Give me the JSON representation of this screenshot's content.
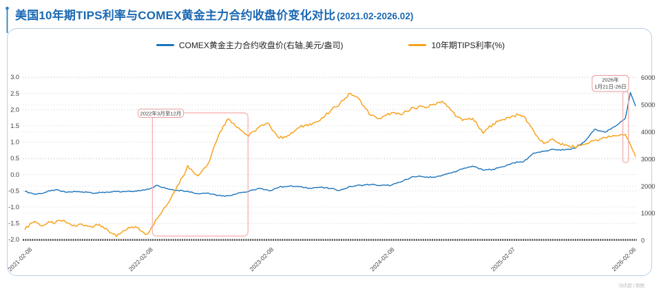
{
  "title": {
    "main": "美国10年期TIPS利率与COMEX黄金主力合约收盘价变化对比",
    "period": "(2021.02-2026.02)"
  },
  "legend": [
    {
      "label": "COMEX黄金主力合约收盘价(右轴,美元/盎司)",
      "color": "#1b74bc"
    },
    {
      "label": "10年期TIPS利率(%)",
      "color": "#f7a21b"
    }
  ],
  "watermark": "冯庆超 | 制图",
  "colors": {
    "title": "#1a68b2",
    "card_border": "#b5d0e8",
    "grid": "#dcdcdc",
    "grid_right": "#e2e2e2",
    "axis_line": "#4d4d4d",
    "tick_text": "#3d3d3d",
    "annotation_box": "#e89b9b",
    "annotation_window": "#f2abab",
    "annotation_text": "#3a3a3a",
    "pin": "#2e7fc0"
  },
  "chart_data": {
    "type": "line",
    "title": "美国10年期TIPS利率与COMEX黄金主力合约收盘价变化对比(2021.02-2026.02)",
    "x_start": "2021-02-08",
    "x_end": "2026-02-06",
    "x_months": 60,
    "x_ticks": [
      "2021-02-08",
      "2022-02-08",
      "2023-02-08",
      "2024-02-08",
      "2025-02-07",
      "2026-02-06"
    ],
    "left_axis": {
      "name": "10年期TIPS利率(%)",
      "min": -2.0,
      "max": 3.0,
      "ticks": [
        "3.0",
        "2.5",
        "2.0",
        "1.5",
        "1.0",
        "0.5",
        "0.0",
        "-0.5",
        "-1.0",
        "-1.5",
        "-2.0"
      ]
    },
    "right_axis": {
      "name": "COMEX黄金主力合约收盘价(美元/盎司)",
      "min": 0,
      "max": 6000,
      "ticks": [
        "6000",
        "5000",
        "4000",
        "3000",
        "2000",
        "1000",
        "0"
      ]
    },
    "grid": true,
    "legend_position": "top",
    "series": [
      {
        "name": "COMEX黄金主力合约收盘价(右轴,美元/盎司)",
        "axis": "right",
        "color": "#1b74bc",
        "sampling": "semi-monthly 2021-02 to 2026-02",
        "values": [
          1810,
          1760,
          1705,
          1730,
          1770,
          1825,
          1868,
          1822,
          1778,
          1790,
          1802,
          1788,
          1793,
          1768,
          1748,
          1762,
          1782,
          1792,
          1798,
          1788,
          1802,
          1808,
          1818,
          1852,
          1892,
          1942,
          2035,
          1948,
          1912,
          1878,
          1852,
          1838,
          1822,
          1768,
          1722,
          1742,
          1756,
          1708,
          1662,
          1652,
          1642,
          1698,
          1758,
          1778,
          1802,
          1868,
          1922,
          1872,
          1832,
          1902,
          1968,
          1988,
          2002,
          1992,
          1978,
          1952,
          1932,
          1948,
          1958,
          1938,
          1918,
          1882,
          1852,
          1922,
          1988,
          2012,
          2038,
          2052,
          2062,
          2042,
          2028,
          2032,
          2038,
          2102,
          2162,
          2252,
          2342,
          2348,
          2352,
          2338,
          2322,
          2362,
          2402,
          2452,
          2502,
          2568,
          2632,
          2688,
          2742,
          2668,
          2592,
          2608,
          2622,
          2672,
          2722,
          2792,
          2862,
          2882,
          2902,
          3062,
          3222,
          3252,
          3282,
          3318,
          3352,
          3342,
          3332,
          3362,
          3392,
          3518,
          3642,
          3872,
          4102,
          4042,
          3982,
          4092,
          4202,
          4352,
          4502,
          5450,
          4950
        ]
      },
      {
        "name": "10年期TIPS利率(%)",
        "axis": "left",
        "color": "#f7a21b",
        "sampling": "semi-monthly 2021-02 to 2026-02",
        "values": [
          -1.7,
          -1.52,
          -1.44,
          -1.56,
          -1.54,
          -1.47,
          -1.49,
          -1.42,
          -1.46,
          -1.54,
          -1.6,
          -1.52,
          -1.56,
          -1.6,
          -1.53,
          -1.61,
          -1.66,
          -1.8,
          -1.91,
          -1.79,
          -1.7,
          -1.61,
          -1.63,
          -1.75,
          -1.84,
          -1.6,
          -1.36,
          -1.14,
          -0.92,
          -0.62,
          -0.33,
          -0.08,
          0.28,
          0.1,
          -0.04,
          0.15,
          0.33,
          0.78,
          1.18,
          1.5,
          1.72,
          1.58,
          1.44,
          1.3,
          1.18,
          1.33,
          1.46,
          1.52,
          1.56,
          1.32,
          1.12,
          1.17,
          1.21,
          1.34,
          1.45,
          1.51,
          1.56,
          1.61,
          1.66,
          1.8,
          1.94,
          2.08,
          2.21,
          2.36,
          2.5,
          2.4,
          2.26,
          2.02,
          1.82,
          1.76,
          1.72,
          1.82,
          1.9,
          1.86,
          1.84,
          1.95,
          2.06,
          2.02,
          2.1,
          2.07,
          2.14,
          2.21,
          2.26,
          2.1,
          1.94,
          1.78,
          1.66,
          1.71,
          1.73,
          1.5,
          1.27,
          1.42,
          1.56,
          1.63,
          1.7,
          1.76,
          1.81,
          1.83,
          1.8,
          1.58,
          1.34,
          1.1,
          0.95,
          1.03,
          1.06,
          0.97,
          0.9,
          0.87,
          0.84,
          0.9,
          0.93,
          0.99,
          1.06,
          1.09,
          1.13,
          1.16,
          1.19,
          1.22,
          1.24,
          0.92,
          0.55
        ]
      }
    ],
    "annotations": [
      {
        "label_lines": [
          "2022年3月至12月"
        ],
        "from_month": 12.2,
        "to_month": 21.7
      },
      {
        "label_lines": [
          "2026年",
          "1月21日-26日"
        ],
        "from_month": 58.95,
        "to_month": 59.5
      }
    ]
  }
}
